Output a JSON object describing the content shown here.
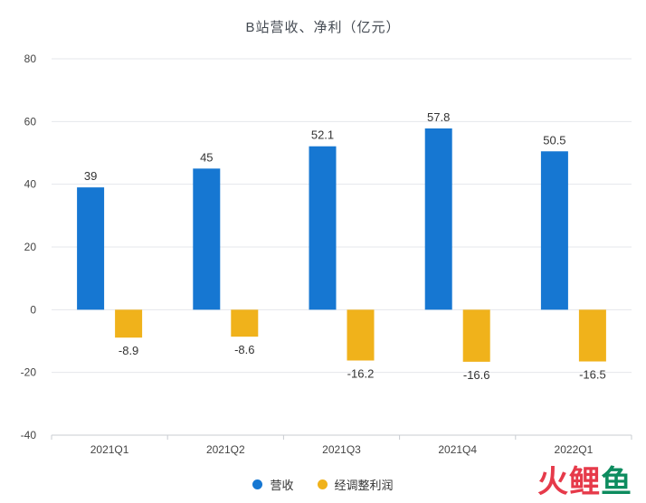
{
  "chart_data": {
    "type": "bar",
    "title": "B站营收、净利（亿元）",
    "categories": [
      "2021Q1",
      "2021Q2",
      "2021Q3",
      "2021Q4",
      "2022Q1"
    ],
    "series": [
      {
        "name": "营收",
        "color": "#1677d2",
        "values": [
          39,
          45,
          52.1,
          57.8,
          50.5
        ],
        "labels": [
          "39",
          "45",
          "52.1",
          "57.8",
          "50.5"
        ]
      },
      {
        "name": "经调整利润",
        "color": "#f0b21b",
        "values": [
          -8.9,
          -8.6,
          -16.2,
          -16.6,
          -16.5
        ],
        "labels": [
          "-8.9",
          "-8.6",
          "-16.2",
          "-16.6",
          "-16.5"
        ]
      }
    ],
    "ylim": [
      -40,
      80
    ],
    "yticks": [
      80,
      60,
      40,
      20,
      0,
      -20,
      -40
    ],
    "xlabel": "",
    "ylabel": "",
    "grid": true,
    "legend_position": "bottom"
  },
  "watermark": {
    "chars": [
      "火",
      "鲤",
      "鱼"
    ],
    "colors": [
      "#e63a4a",
      "#e63a4a",
      "#0d8c5f"
    ]
  }
}
